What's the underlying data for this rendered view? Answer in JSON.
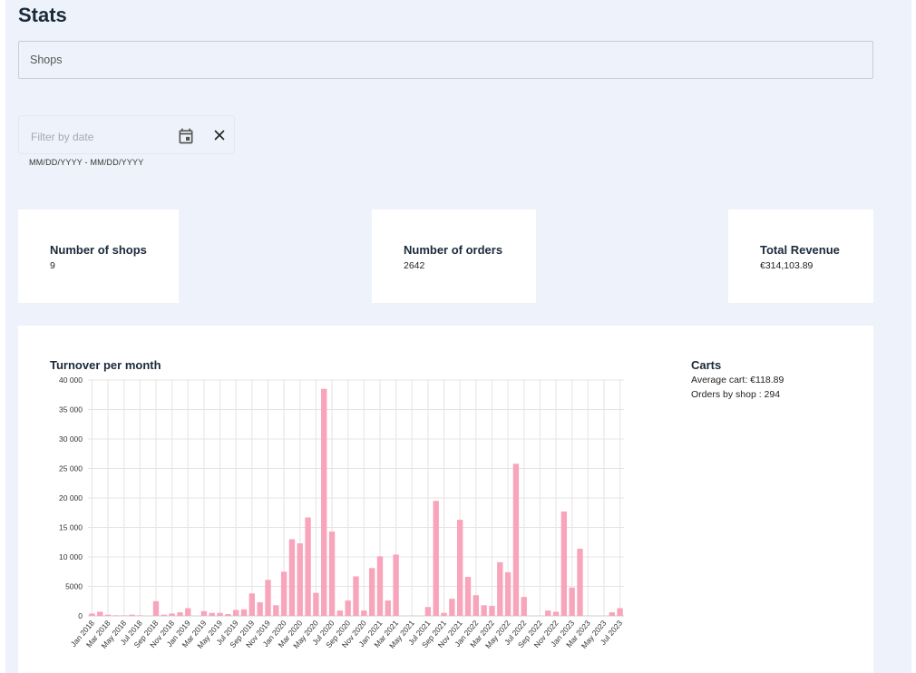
{
  "page": {
    "title": "Stats"
  },
  "filters": {
    "shops_placeholder": "Shops",
    "date_placeholder": "Filter by date",
    "date_helper": "MM/DD/YYYY - MM/DD/YYYY"
  },
  "icons": {
    "calendar": "calendar-icon",
    "clear": "close-icon"
  },
  "cards": [
    {
      "label": "Number of shops",
      "value": "9"
    },
    {
      "label": "Number of orders",
      "value": "2642"
    },
    {
      "label": "Total Revenue",
      "value": "€314,103.89"
    }
  ],
  "carts": {
    "title": "Carts",
    "average_cart": "Average cart: €118.89",
    "orders_by_shop": "Orders by shop : 294"
  },
  "colors": {
    "bar": "#f8a4bb",
    "grid": "#e4e4e4",
    "background": "#eef3fb"
  },
  "chart_data": {
    "type": "bar",
    "title": "Turnover per month",
    "xlabel": "",
    "ylabel": "",
    "ylim": [
      0,
      40000
    ],
    "yticks": [
      0,
      5000,
      10000,
      15000,
      20000,
      25000,
      30000,
      35000,
      40000
    ],
    "ytick_labels": [
      "0",
      "5000",
      "10 000",
      "15 000",
      "20 000",
      "25 000",
      "30 000",
      "35 000",
      "40 000"
    ],
    "grid": true,
    "categories": [
      "Jan 2018",
      "Feb 2018",
      "Mar 2018",
      "Apr 2018",
      "May 2018",
      "Jun 2018",
      "Jul 2018",
      "Aug 2018",
      "Sep 2018",
      "Oct 2018",
      "Nov 2018",
      "Dec 2018",
      "Jan 2019",
      "Feb 2019",
      "Mar 2019",
      "Apr 2019",
      "May 2019",
      "Jun 2019",
      "Jul 2019",
      "Aug 2019",
      "Sep 2019",
      "Oct 2019",
      "Nov 2019",
      "Dec 2019",
      "Jan 2020",
      "Feb 2020",
      "Mar 2020",
      "Apr 2020",
      "May 2020",
      "Jun 2020",
      "Jul 2020",
      "Aug 2020",
      "Sep 2020",
      "Oct 2020",
      "Nov 2020",
      "Dec 2020",
      "Jan 2021",
      "Feb 2021",
      "Mar 2021",
      "Apr 2021",
      "May 2021",
      "Jun 2021",
      "Jul 2021",
      "Aug 2021",
      "Sep 2021",
      "Oct 2021",
      "Nov 2021",
      "Dec 2021",
      "Jan 2022",
      "Feb 2022",
      "Mar 2022",
      "Apr 2022",
      "May 2022",
      "Jun 2022",
      "Jul 2022",
      "Aug 2022",
      "Sep 2022",
      "Oct 2022",
      "Nov 2022",
      "Dec 2022",
      "Jan 2023",
      "Feb 2023",
      "Mar 2023",
      "Apr 2023",
      "May 2023",
      "Jun 2023",
      "Jul 2023"
    ],
    "tick_labels": [
      "Jan 2018",
      "Mar 2018",
      "May 2018",
      "Jul 2018",
      "Sep 2018",
      "Nov 2018",
      "Jan 2019",
      "Mar 2019",
      "May 2019",
      "Jul 2019",
      "Sep 2019",
      "Nov 2019",
      "Jan 2020",
      "Mar 2020",
      "May 2020",
      "Jul 2020",
      "Sep 2020",
      "Nov 2020",
      "Jan 2021",
      "Mar 2021",
      "May 2021",
      "Jul 2021",
      "Sep 2021",
      "Nov 2021",
      "Jan 2022",
      "Mar 2022",
      "May 2022",
      "Jul 2022",
      "Sep 2022",
      "Nov 2022",
      "Jan 2023",
      "Mar 2023",
      "May 2023",
      "Jul 2023"
    ],
    "values": [
      400,
      700,
      200,
      100,
      100,
      200,
      100,
      0,
      2500,
      200,
      400,
      600,
      1300,
      0,
      800,
      500,
      500,
      300,
      1000,
      1100,
      3800,
      2300,
      6100,
      1800,
      7500,
      13000,
      12300,
      16700,
      3900,
      38500,
      14300,
      900,
      2600,
      6700,
      900,
      8100,
      10100,
      2600,
      10400,
      0,
      0,
      0,
      1500,
      19500,
      500,
      2900,
      16300,
      6600,
      3500,
      1800,
      1700,
      9100,
      7400,
      25800,
      3200,
      0,
      0,
      900,
      700,
      17700,
      4800,
      11400,
      0,
      0,
      0,
      600,
      1300
    ]
  }
}
